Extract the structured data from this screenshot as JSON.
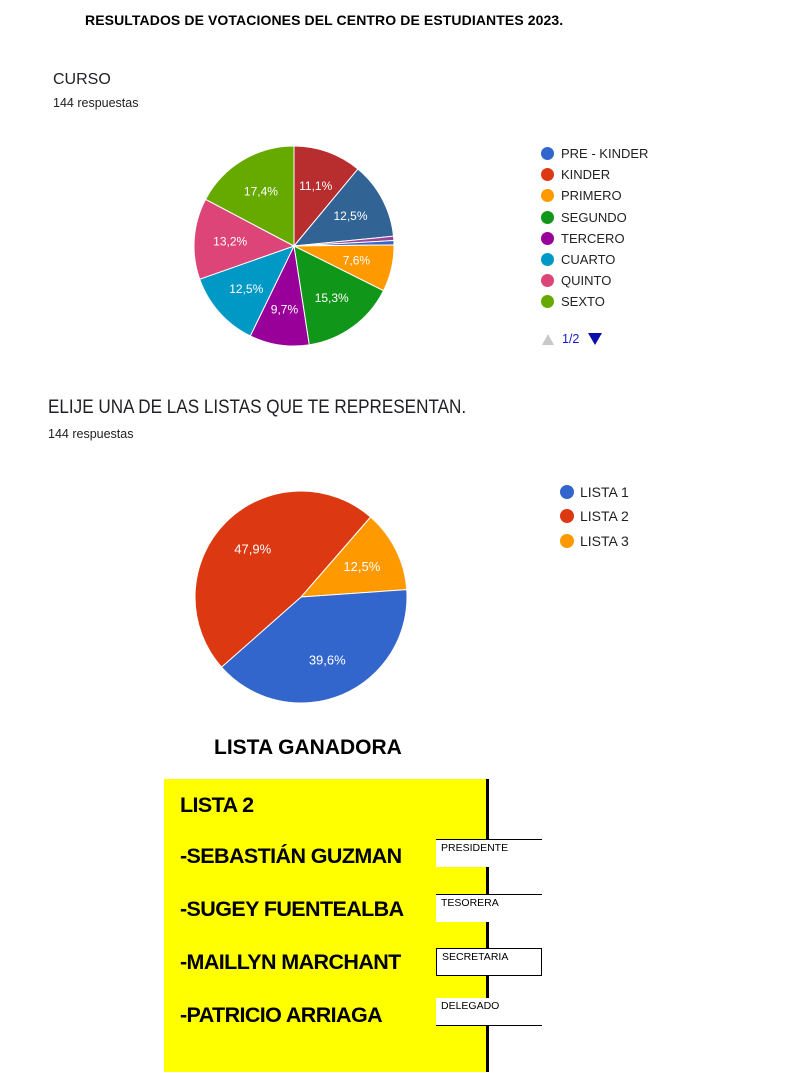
{
  "document": {
    "title": "RESULTADOS DE VOTACIONES DEL CENTRO DE ESTUDIANTES 2023."
  },
  "chart_data": [
    {
      "type": "pie",
      "title": "CURSO",
      "subtitle": "144 respuestas",
      "legend_position": "right",
      "categories": [
        "PRE - KINDER",
        "KINDER",
        "PRIMERO",
        "SEGUNDO",
        "TERCERO",
        "CUARTO",
        "QUINTO",
        "SEXTO"
      ],
      "legend_colors": [
        "#3366cc",
        "#dc3912",
        "#ff9900",
        "#109618",
        "#990099",
        "#0099c6",
        "#dd4477",
        "#66aa00"
      ],
      "slices": [
        {
          "color": "#b82e2e",
          "value": 11.1,
          "label": "11,1%"
        },
        {
          "color": "#316395",
          "value": 12.5,
          "label": "12,5%"
        },
        {
          "color": "#994499",
          "value": 0.7,
          "label": ""
        },
        {
          "color": "#3366cc",
          "value": 0.7,
          "label": ""
        },
        {
          "color": "#ff9900",
          "value": 7.6,
          "label": "7,6%"
        },
        {
          "color": "#109618",
          "value": 15.3,
          "label": "15,3%"
        },
        {
          "color": "#990099",
          "value": 9.7,
          "label": "9,7%"
        },
        {
          "color": "#0099c6",
          "value": 12.5,
          "label": "12,5%"
        },
        {
          "color": "#dd4477",
          "value": 13.2,
          "label": "13,2%"
        },
        {
          "color": "#66aa00",
          "value": 17.4,
          "label": "17,4%"
        }
      ],
      "pager": "1/2"
    },
    {
      "type": "pie",
      "title": "ELIJE UNA DE LAS LISTAS QUE TE REPRESENTAN.",
      "subtitle": "144 respuestas",
      "legend_position": "right",
      "categories": [
        "LISTA 1",
        "LISTA 2",
        "LISTA 3"
      ],
      "legend_colors": [
        "#3366cc",
        "#dc3912",
        "#ff9900"
      ],
      "slices": [
        {
          "color": "#ff9900",
          "value": 12.5,
          "label": "12,5%"
        },
        {
          "color": "#3366cc",
          "value": 39.6,
          "label": "39,6%"
        },
        {
          "color": "#dc3912",
          "value": 47.9,
          "label": "47,9%"
        }
      ]
    }
  ],
  "winner": {
    "heading": "LISTA GANADORA",
    "list_name": "LISTA 2",
    "members": [
      {
        "name": "-SEBASTIÁN GUZMAN",
        "role": "PRESIDENTE"
      },
      {
        "name": "-SUGEY FUENTEALBA",
        "role": "TESORERA"
      },
      {
        "name": "-MAILLYN MARCHANT",
        "role": "SECRETARIA"
      },
      {
        "name": "-PATRICIO ARRIAGA",
        "role": "DELEGADO"
      }
    ]
  }
}
